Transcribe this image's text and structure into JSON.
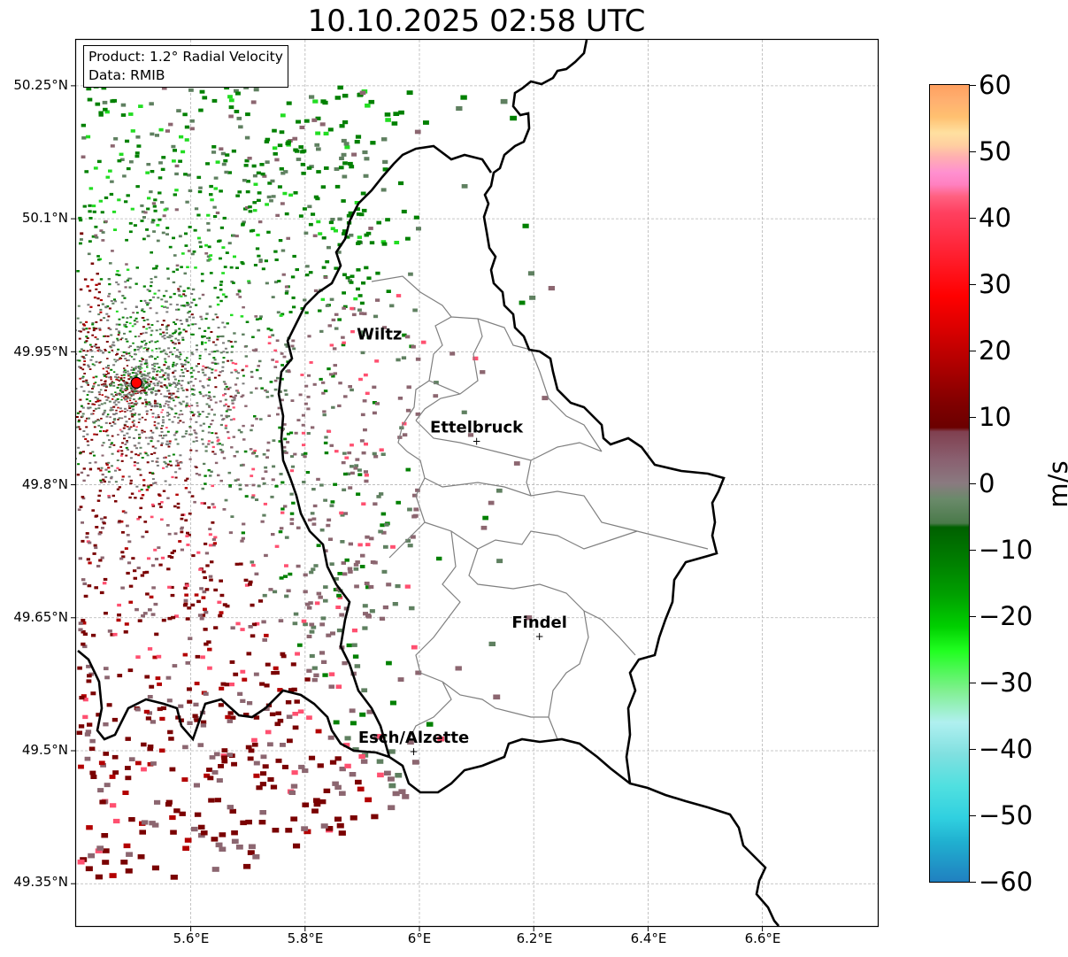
{
  "title": "10.10.2025 02:58 UTC",
  "info": {
    "product": "Product: 1.2° Radial Velocity",
    "source": "Data: RMIB"
  },
  "axes": {
    "lat_ticks": [
      "50.25°N",
      "50.1°N",
      "49.95°N",
      "49.8°N",
      "49.65°N",
      "49.5°N",
      "49.35°N"
    ],
    "lon_ticks": [
      "5.6°E",
      "5.8°E",
      "6°E",
      "6.2°E",
      "6.4°E",
      "6.6°E"
    ],
    "grid": true
  },
  "colorbar": {
    "unit": "m/s",
    "ticks": [
      "60",
      "50",
      "40",
      "30",
      "20",
      "10",
      "0",
      "−10",
      "−20",
      "−30",
      "−40",
      "−50",
      "−60"
    ],
    "range": [
      -60,
      60
    ]
  },
  "places": [
    {
      "name": "Wiltz",
      "lon": 5.93,
      "lat": 49.97,
      "marker": false
    },
    {
      "name": "Ettelbruck",
      "lon": 6.1,
      "lat": 49.85,
      "marker": true
    },
    {
      "name": "Findel",
      "lon": 6.21,
      "lat": 49.63,
      "marker": true
    },
    {
      "name": "Esch/Alzette",
      "lon": 5.99,
      "lat": 49.5,
      "marker": true
    }
  ],
  "radar_site": {
    "lon": 5.505,
    "lat": 49.915,
    "color": "#ff0000"
  },
  "colors": {
    "red": "#b30000",
    "dark_red": "#7a0000",
    "green": "#008000",
    "bright_green": "#22dd22",
    "gray_green": "#5f8060",
    "mauve": "#8c6670",
    "pink": "#ff5070",
    "border": "#000000",
    "canton_border": "#808080"
  }
}
